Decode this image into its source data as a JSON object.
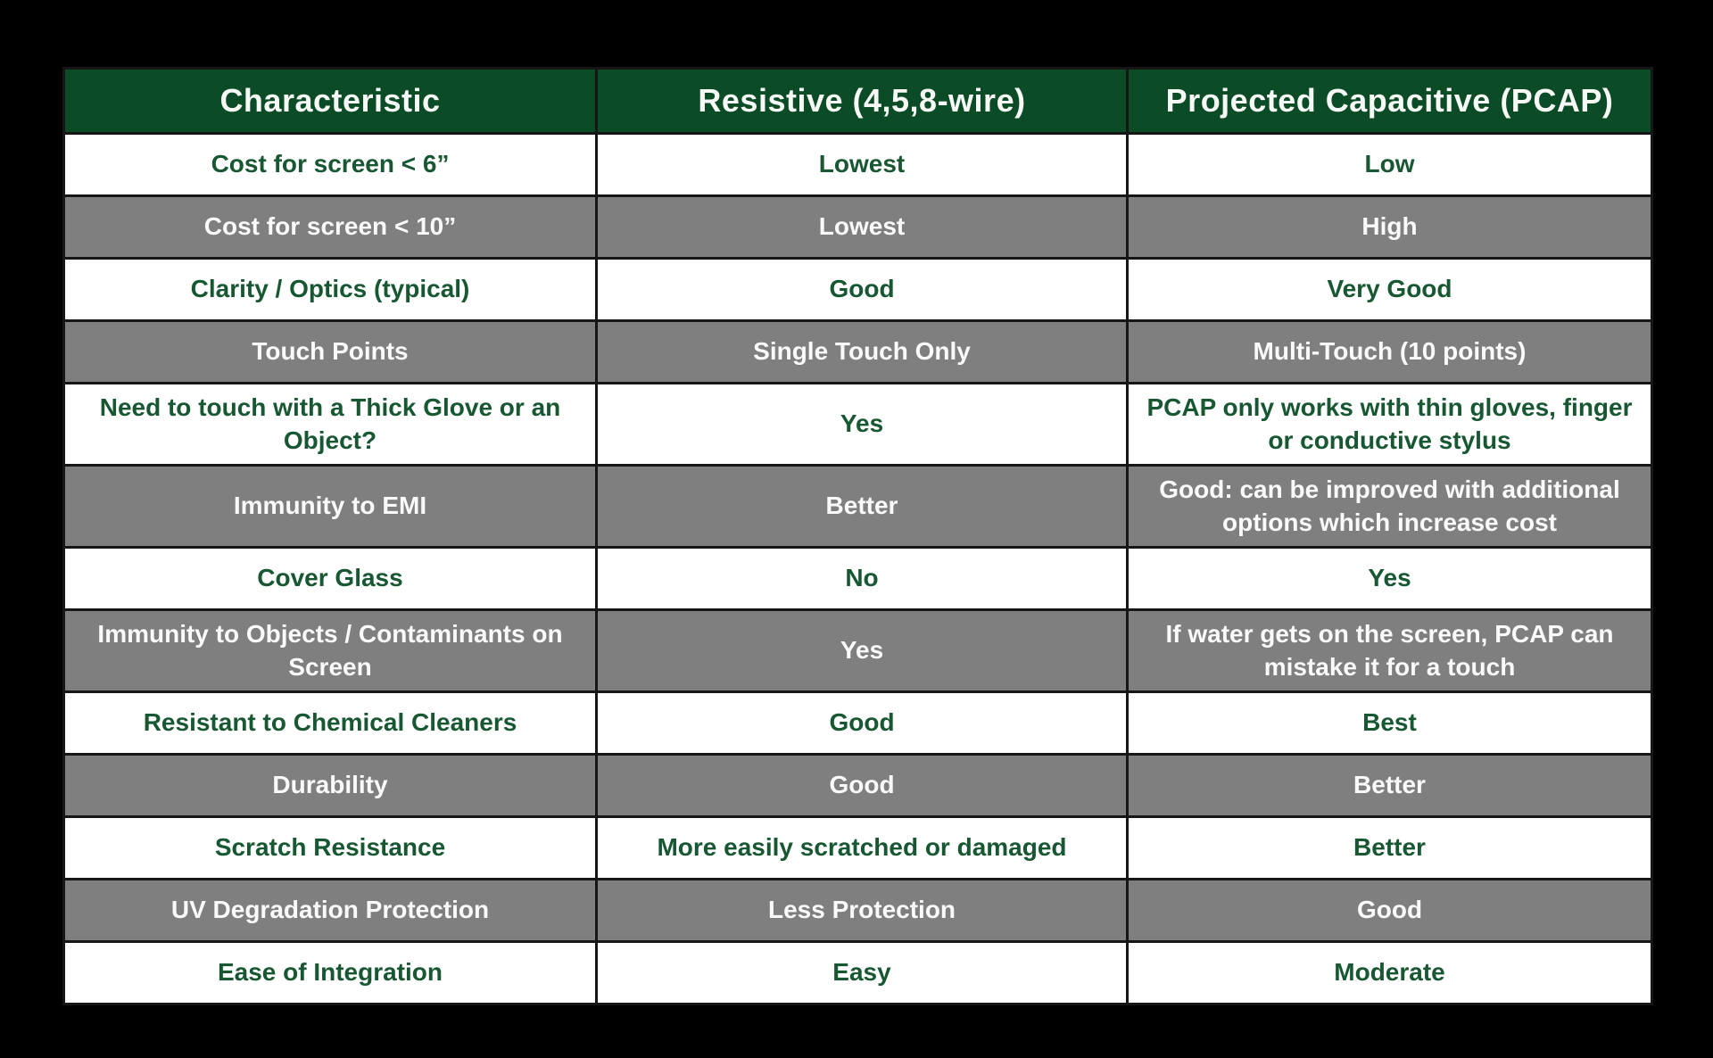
{
  "colors": {
    "page_background": "#000000",
    "header_background": "#0b4c26",
    "header_text": "#f7f9f7",
    "shaded_row_background": "#7f7f7f",
    "shaded_row_text": "#fafafa",
    "plain_row_background": "#ffffff",
    "plain_row_text": "#175732",
    "grid_border": "#161616"
  },
  "chart_data": {
    "type": "table",
    "columns": [
      "Characteristic",
      "Resistive (4,5,8-wire)",
      "Projected Capacitive (PCAP)"
    ],
    "rows": [
      {
        "cells": [
          "Cost for screen < 6”",
          "Lowest",
          "Low"
        ]
      },
      {
        "cells": [
          "Cost for screen < 10”",
          "Lowest",
          "High"
        ]
      },
      {
        "cells": [
          "Clarity / Optics (typical)",
          "Good",
          "Very Good"
        ]
      },
      {
        "cells": [
          "Touch Points",
          "Single Touch Only",
          "Multi-Touch (10 points)"
        ]
      },
      {
        "cells": [
          "Need to touch with a Thick Glove or an Object?",
          "Yes",
          "PCAP only works with thin gloves, finger or conductive stylus"
        ]
      },
      {
        "cells": [
          "Immunity to EMI",
          "Better",
          "Good: can be improved with additional options which increase cost"
        ]
      },
      {
        "cells": [
          "Cover Glass",
          "No",
          "Yes"
        ]
      },
      {
        "cells": [
          "Immunity to Objects / Contaminants on Screen",
          "Yes",
          "If water gets on the screen, PCAP can mistake it for a touch"
        ]
      },
      {
        "cells": [
          "Resistant to Chemical Cleaners",
          "Good",
          "Best"
        ]
      },
      {
        "cells": [
          "Durability",
          "Good",
          "Better"
        ]
      },
      {
        "cells": [
          "Scratch Resistance",
          "More easily scratched or damaged",
          "Better"
        ]
      },
      {
        "cells": [
          "UV Degradation Protection",
          "Less Protection",
          "Good"
        ]
      },
      {
        "cells": [
          "Ease of Integration",
          "Easy",
          "Moderate"
        ]
      }
    ],
    "layout_hints": {
      "row_striping": "white / gray alternating starting with white",
      "two_line_rows": [
        5,
        6,
        8
      ],
      "alignment": "all cells centered"
    }
  }
}
